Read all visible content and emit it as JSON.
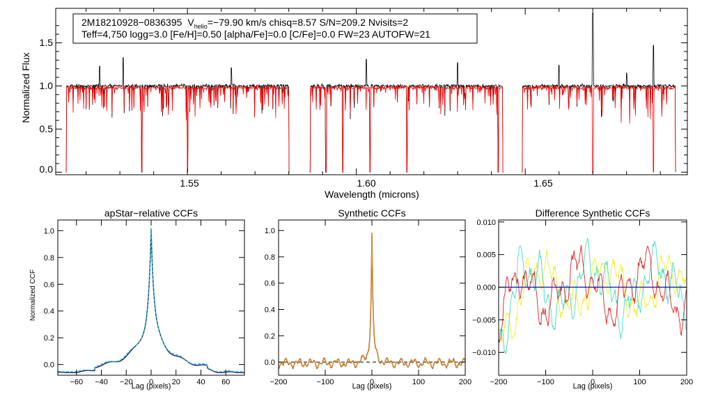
{
  "colors": {
    "axis": "#000000",
    "observed": "#000000",
    "model": "#ff0000",
    "ccf_dark": "#1a1a7a",
    "ccf_teal": "#2ab5b5",
    "synth_obs": "#8b2b1e",
    "synth_model": "#e0a020",
    "diff_yellow": "#f0f020",
    "diff_cyan": "#40e0c0",
    "diff_red": "#e02020",
    "diff_flat": "#1010a0"
  },
  "chart_data": [
    {
      "type": "line",
      "id": "spectrum",
      "title": "",
      "xlabel": "Wavelength (microns)",
      "ylabel": "Normalized Flux",
      "xlim": [
        1.511,
        1.698
      ],
      "ylim": [
        -0.03,
        1.9
      ],
      "xticks": [
        1.55,
        1.6,
        1.65
      ],
      "xtick_labels": [
        "1.55",
        "1.60",
        "1.65"
      ],
      "yticks": [
        0.0,
        0.5,
        1.0,
        1.5
      ],
      "ytick_labels": [
        "0.0",
        "0.5",
        "1.0",
        "1.5"
      ],
      "chips": [
        [
          1.514,
          1.5802
        ],
        [
          1.5862,
          1.6435
        ],
        [
          1.649,
          1.6945
        ]
      ],
      "strong_lines": [
        1.514,
        1.5365,
        1.55,
        1.5802,
        1.5862,
        1.591,
        1.596,
        1.604,
        1.615,
        1.642,
        1.6435,
        1.649,
        1.67,
        1.688
      ],
      "emission_spikes": [
        [
          1.524,
          1.23
        ],
        [
          1.531,
          1.33
        ],
        [
          1.563,
          1.21
        ],
        [
          1.603,
          1.31
        ],
        [
          1.63,
          1.27
        ],
        [
          1.67,
          1.85
        ],
        [
          1.68,
          1.15
        ],
        [
          1.688,
          1.47
        ],
        [
          1.66,
          1.24
        ]
      ],
      "series": [
        {
          "name": "observed spectrum",
          "color_key": "observed",
          "continuum": 1.0
        },
        {
          "name": "synthetic model",
          "color_key": "model",
          "continuum": 0.98
        }
      ],
      "legend": {
        "line1_star": "2M18210928−0836395",
        "line1_vlabel": "V",
        "line1_vsub": "helio",
        "line1_rest": "=−79.90 km/s  chisq=8.57  S/N=209.2  Nvisits=2",
        "line2": "Teff=4,750 logg=3.0 [Fe/H]=0.50 [alpha/Fe]=0.0 [C/Fe]=0.0 FW=23 AUTOFW=21"
      }
    },
    {
      "type": "line",
      "id": "apstar_ccf",
      "title": "apStar−relative CCFs",
      "xlabel": "Lag (pixels)",
      "ylabel": "Normalized CCF",
      "xlim": [
        -75,
        75
      ],
      "ylim": [
        -0.08,
        1.08
      ],
      "xticks": [
        -60,
        -40,
        -20,
        0,
        20,
        40,
        60
      ],
      "xtick_labels": [
        "−60",
        "−40",
        "−20",
        "0",
        "20",
        "40",
        "60"
      ],
      "yticks": [
        0.0,
        0.2,
        0.4,
        0.6,
        0.8,
        1.0
      ],
      "ytick_labels": [
        "0.0",
        "0.2",
        "0.4",
        "0.6",
        "0.8",
        "1.0"
      ],
      "series": [
        {
          "name": "visit CCF",
          "color_key": "ccf_dark",
          "dash": false
        },
        {
          "name": "combined CCF",
          "color_key": "ccf_teal",
          "dash": true
        }
      ]
    },
    {
      "type": "line",
      "id": "synthetic_ccf",
      "title": "Synthetic CCFs",
      "xlabel": "Lag (pixels)",
      "ylabel": "",
      "xlim": [
        -200,
        200
      ],
      "ylim": [
        -0.1,
        1.08
      ],
      "xticks": [
        -200,
        -100,
        0,
        100,
        200
      ],
      "xtick_labels": [
        "−200",
        "−100",
        "0",
        "100",
        "200"
      ],
      "yticks": [
        0.0,
        0.2,
        0.4,
        0.6,
        0.8,
        1.0
      ],
      "ytick_labels": [
        "0.0",
        "0.2",
        "0.4",
        "0.6",
        "0.8",
        "1.0"
      ],
      "zero_line": true,
      "series": [
        {
          "name": "synthetic CCF 1",
          "color_key": "synth_obs"
        },
        {
          "name": "synthetic CCF 2",
          "color_key": "synth_model"
        }
      ]
    },
    {
      "type": "line",
      "id": "diff_ccf",
      "title": "Difference Synthetic CCFs",
      "xlabel": "Lag (pixels)",
      "ylabel": "",
      "xlim": [
        -200,
        200
      ],
      "ylim": [
        -0.0135,
        0.0103
      ],
      "xticks": [
        -200,
        -100,
        0,
        100,
        200
      ],
      "xtick_labels": [
        "−200",
        "−100",
        "0",
        "100",
        "200"
      ],
      "yticks": [
        -0.01,
        -0.005,
        0.0,
        0.005,
        0.01
      ],
      "ytick_labels": [
        "−0.010",
        "−0.005",
        "0.000",
        "0.005",
        "0.010"
      ],
      "series": [
        {
          "name": "difference 1",
          "color_key": "diff_yellow",
          "amp": 0.0065
        },
        {
          "name": "difference 2",
          "color_key": "diff_cyan",
          "amp": 0.0075
        },
        {
          "name": "difference 3",
          "color_key": "diff_red",
          "amp": 0.007
        },
        {
          "name": "difference 0",
          "color_key": "diff_flat",
          "amp": 0.0
        }
      ]
    }
  ]
}
